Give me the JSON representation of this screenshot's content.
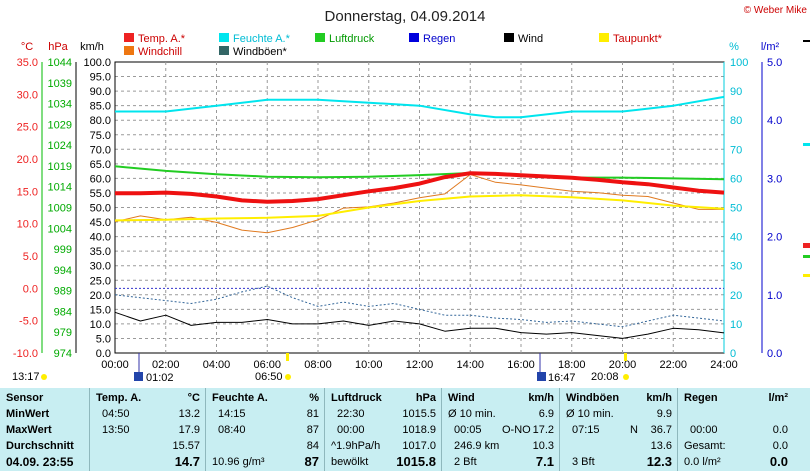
{
  "header": {
    "title": "Donnerstag, 04.09.2014",
    "copyright": "© Weber Mike"
  },
  "colors": {
    "temp": "#ff0000",
    "humidity": "#00e5ee",
    "pressure": "#00cc00",
    "rain": "#0000dd",
    "wind": "#000000",
    "dewpoint": "#ffee00",
    "windchill": "#ee7711",
    "gust": "#336699",
    "stats_bg": "#c8eef2",
    "grid": "#999999"
  },
  "legend": [
    {
      "label": "Temp. A.*",
      "color": "#ee2222",
      "text_color": "#cc0000"
    },
    {
      "label": "Feuchte A.*",
      "color": "#00e5ee",
      "text_color": "#00bcd4"
    },
    {
      "label": "Luftdruck",
      "color": "#22cc22",
      "text_color": "#009900"
    },
    {
      "label": "Regen",
      "color": "#0000dd",
      "text_color": "#0000cc"
    },
    {
      "label": "Wind",
      "color": "#000000",
      "text_color": "#000000"
    },
    {
      "label": "Taupunkt*",
      "color": "#ffee00",
      "text_color": "#cc0000"
    },
    {
      "label": "Windchill",
      "color": "#ee7711",
      "text_color": "#cc0000"
    },
    {
      "label": "Windböen*",
      "color": "#336666",
      "text_color": "#000000"
    }
  ],
  "chart_data": {
    "type": "line",
    "grid": true,
    "x_ticks": [
      "00:00",
      "02:00",
      "04:00",
      "06:00",
      "08:00",
      "10:00",
      "12:00",
      "14:00",
      "16:00",
      "18:00",
      "20:00",
      "22:00",
      "24:00"
    ],
    "axes": {
      "temp": {
        "unit": "°C",
        "min": -10,
        "max": 35,
        "ticks": [
          "35.0",
          "30.0",
          "25.0",
          "20.0",
          "15.0",
          "10.0",
          "5.0",
          "0.0",
          "-5.0",
          "-10.0"
        ]
      },
      "pressure": {
        "unit": "hPa",
        "min": 974,
        "max": 1044,
        "ticks": [
          "1044",
          "1039",
          "1034",
          "1029",
          "1024",
          "1019",
          "1014",
          "1009",
          "1004",
          "999",
          "994",
          "989",
          "984",
          "979",
          "974"
        ]
      },
      "wind": {
        "unit": "km/h",
        "min": 0,
        "max": 100,
        "ticks": [
          "100.0",
          "95.0",
          "90.0",
          "85.0",
          "80.0",
          "75.0",
          "70.0",
          "65.0",
          "60.0",
          "55.0",
          "50.0",
          "45.0",
          "40.0",
          "35.0",
          "30.0",
          "25.0",
          "20.0",
          "15.0",
          "10.0",
          "5.0",
          "0.0"
        ]
      },
      "humidity": {
        "unit": "%",
        "min": 0,
        "max": 100,
        "ticks": [
          "100",
          "90",
          "80",
          "70",
          "60",
          "50",
          "40",
          "30",
          "20",
          "10",
          "0"
        ]
      },
      "rain": {
        "unit": "l/m²",
        "min": 0,
        "max": 5,
        "ticks": [
          "5.0",
          "4.0",
          "3.0",
          "2.0",
          "1.0",
          "0.0"
        ]
      }
    },
    "series": [
      {
        "name": "Temp. A.*",
        "axis": "temp",
        "color": "#ee1111",
        "width": 4,
        "x": [
          0,
          1,
          2,
          3,
          4,
          5,
          6,
          7,
          8,
          9,
          10,
          11,
          12,
          13,
          14,
          15,
          16,
          17,
          18,
          19,
          20,
          21,
          22,
          23,
          24
        ],
        "y": [
          14.7,
          14.7,
          14.8,
          14.6,
          14.2,
          13.6,
          13.4,
          13.5,
          13.8,
          14.4,
          15.0,
          15.5,
          16.2,
          17.2,
          17.8,
          17.7,
          17.5,
          17.3,
          17.1,
          16.8,
          16.4,
          16.1,
          15.6,
          15.1,
          14.8
        ]
      },
      {
        "name": "Feuchte A.*",
        "axis": "humidity",
        "color": "#00e5ee",
        "width": 2,
        "x": [
          0,
          2,
          4,
          6,
          8,
          10,
          12,
          14,
          15,
          16,
          18,
          20,
          22,
          24
        ],
        "y": [
          83,
          83,
          85,
          87,
          87,
          86,
          85,
          82,
          81,
          81,
          83,
          83,
          85,
          88
        ]
      },
      {
        "name": "Luftdruck",
        "axis": "pressure",
        "color": "#22cc22",
        "width": 2,
        "x": [
          0,
          2,
          4,
          6,
          8,
          10,
          12,
          14,
          16,
          18,
          20,
          22,
          24
        ],
        "y": [
          1018.9,
          1017.8,
          1017.0,
          1016.4,
          1016.3,
          1016.4,
          1016.8,
          1017.3,
          1016.7,
          1016.2,
          1016.2,
          1016.0,
          1015.8
        ]
      },
      {
        "name": "Taupunkt*",
        "axis": "temp",
        "color": "#ffee00",
        "width": 2,
        "x": [
          0,
          2,
          4,
          6,
          8,
          10,
          12,
          14,
          16,
          18,
          20,
          22,
          24
        ],
        "y": [
          10.5,
          10.6,
          10.8,
          10.9,
          11.2,
          12.5,
          13.5,
          14.2,
          14.4,
          14.1,
          13.6,
          12.8,
          12.3
        ]
      },
      {
        "name": "Windchill",
        "axis": "temp",
        "color": "#e07a20",
        "width": 1,
        "x": [
          0,
          1,
          2,
          3,
          4,
          5,
          6,
          7,
          8,
          9,
          10,
          11,
          12,
          13,
          14,
          15,
          16,
          17,
          18,
          19,
          20,
          21,
          22,
          23,
          24
        ],
        "y": [
          10.3,
          11.2,
          10.6,
          11.0,
          10.2,
          9.0,
          8.6,
          9.4,
          10.6,
          12.4,
          12.6,
          13.2,
          14.0,
          14.6,
          17.6,
          16.4,
          16.0,
          15.5,
          15.0,
          14.8,
          14.4,
          14.2,
          13.2,
          12.2,
          12.2
        ]
      },
      {
        "name": "Wind",
        "axis": "wind",
        "color": "#000000",
        "width": 1,
        "x": [
          0,
          1,
          2,
          3,
          4,
          5,
          6,
          7,
          8,
          9,
          10,
          11,
          12,
          13,
          14,
          15,
          16,
          17,
          18,
          19,
          20,
          21,
          22,
          23,
          24
        ],
        "y": [
          14.0,
          11.0,
          13.0,
          9.5,
          10.5,
          10.5,
          11.5,
          10.0,
          10.0,
          11.0,
          9.5,
          11.0,
          10.0,
          7.5,
          8.5,
          8.5,
          7.0,
          6.5,
          7.0,
          6.0,
          5.0,
          6.5,
          8.5,
          8.0,
          6.9
        ]
      },
      {
        "name": "Windböen*",
        "axis": "wind",
        "color": "#336699",
        "width": 1,
        "dash": "2,2",
        "x": [
          0,
          1,
          2,
          3,
          4,
          5,
          6,
          7,
          8,
          9,
          10,
          11,
          12,
          13,
          14,
          15,
          16,
          17,
          18,
          19,
          20,
          21,
          22,
          23,
          24
        ],
        "y": [
          20.0,
          19.0,
          18.0,
          17.0,
          18.5,
          21.0,
          23.0,
          19.0,
          16.0,
          17.5,
          16.0,
          17.0,
          15.0,
          13.0,
          13.0,
          12.0,
          11.5,
          10.5,
          11.0,
          10.0,
          9.0,
          11.0,
          13.0,
          12.0,
          11.0
        ]
      }
    ],
    "markers": {
      "above_axis": [
        "13:17",
        "06:50",
        "20:08"
      ],
      "below_axis": [
        "01:02",
        "16:47"
      ]
    }
  },
  "stats": {
    "row_labels": [
      "Sensor",
      "MinWert",
      "MaxWert",
      "Durchschnitt",
      "04.09.  23:55"
    ],
    "temp": {
      "header": "Temp. A.",
      "unit": "°C",
      "min_time": "04:50",
      "min": "13.2",
      "max_time": "13:50",
      "max": "17.9",
      "avg": "15.57",
      "cur": "14.7"
    },
    "humidity": {
      "header": "Feuchte A.",
      "unit": "%",
      "min_time": "14:15",
      "min": "81",
      "max_time": "08:40",
      "max": "87",
      "avg": "84",
      "cur_abs": "10.96 g/m³",
      "cur": "87"
    },
    "pressure": {
      "header": "Luftdruck",
      "unit": "hPa",
      "min_time": "22:30",
      "min": "1015.5",
      "max_time": "00:00",
      "max": "1018.9",
      "trend": "^1.9hPa/h",
      "avg": "1017.0",
      "cond": "bewölkt",
      "cur": "1015.8"
    },
    "wind": {
      "header": "Wind",
      "unit": "km/h",
      "r1_label": "Ø 10 min.",
      "r1": "6.9",
      "r2_time": "00:05",
      "r2_dir": "O-NO",
      "r2": "17.2",
      "r3_dist": "246.9 km",
      "r3": "10.3",
      "r4_bft": "2 Bft",
      "r4": "7.1"
    },
    "gust": {
      "header": "Windböen",
      "unit": "km/h",
      "r1_label": "Ø 10 min.",
      "r1": "9.9",
      "r2_time": "07:15",
      "r2_dir": "N",
      "r2": "36.7",
      "r3": "13.6",
      "r4_bft": "3 Bft",
      "r4": "12.3"
    },
    "rain": {
      "header": "Regen",
      "unit": "l/m²",
      "r2_time": "00:00",
      "r2": "0.0",
      "r3_label": "Gesamt:",
      "r3": "0.0",
      "r4_label": "0.0 l/m²",
      "r4": "0.0"
    }
  }
}
